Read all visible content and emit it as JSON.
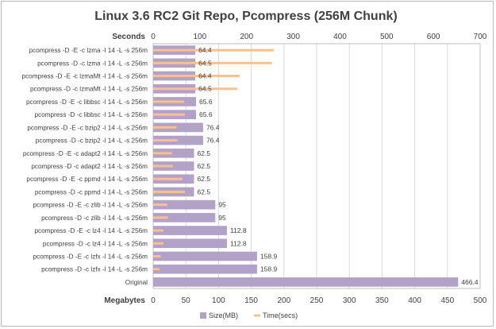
{
  "chart_data": {
    "type": "bar",
    "title": "Linux 3.6 RC2 Git Repo, Pcompress (256M Chunk)",
    "top_axis": {
      "label": "Seconds",
      "min": 0,
      "max": 700,
      "step": 100,
      "ticks": [
        "0",
        "100",
        "200",
        "300",
        "400",
        "500",
        "600",
        "700"
      ]
    },
    "bottom_axis": {
      "label": "Megabytes",
      "min": 0,
      "max": 500,
      "step": 50,
      "ticks": [
        "0",
        "50",
        "100",
        "150",
        "200",
        "250",
        "300",
        "350",
        "400",
        "450",
        "500"
      ]
    },
    "categories": [
      "pcompress -D -E -c lzma -l 14 -L -s 256m",
      "pcompress -D -c lzma -l 14 -L -s 256m",
      "pcompress -D -E -c lzmaMt -l 14 -L -s 256m",
      "pcompress -D -c lzmaMt -l 14 -L -s 256m",
      "pcompress -D -E -c libbsc -l 14 -L -s 256m",
      "pcompress -D -c libbsc -l 14 -L -s 256m",
      "pcompress -D -E -c bzip2 -l 14 -L -s 256m",
      "pcompress -D -c bzip2 -l 14 -L -s 256m",
      "pcompress -D -E -c adapt2 -l 14 -L -s 256m",
      "pcompress -D -c adapt2 -l 14 -L -s 256m",
      "pcompress -D -E -c ppmd -l 14 -L -s 256m",
      "pcompress -D -c ppmd -l 14 -L -s 256m",
      "pcompress -D -E -c zlib -l 14 -L -s 256m",
      "pcompress -D -c zlib -l 14 -L -s 256m",
      "pcompress -D -E -c lz4 -l 14 -L -s 256m",
      "pcompress -D -c lz4 -l 14 -L -s 256m",
      "pcompress -D -E -c lzfx -l 14 -L -s 256m",
      "pcompress -D -c lzfx -l 14 -L -s 256m",
      "Original"
    ],
    "series": [
      {
        "name": "Size(MB)",
        "axis": "bottom",
        "color": "#b3a2c7",
        "values": [
          64.4,
          64.5,
          64.4,
          64.5,
          65.6,
          65.6,
          76.4,
          76.4,
          62.5,
          62.5,
          62.5,
          62.5,
          95,
          95,
          112.8,
          112.8,
          158.9,
          158.9,
          466.4
        ],
        "labels": [
          "64.4",
          "64.5",
          "64.4",
          "64.5",
          "65.6",
          "65.6",
          "76.4",
          "76.4",
          "62.5",
          "62.5",
          "62.5",
          "62.5",
          "95",
          "95",
          "112.8",
          "112.8",
          "158.9",
          "158.9",
          "466.4"
        ]
      },
      {
        "name": "Time(secs)",
        "axis": "top",
        "color": "#fac090",
        "values": [
          258,
          254,
          185,
          180,
          66,
          68,
          50,
          52,
          40,
          42,
          63,
          68,
          30,
          31,
          22,
          22,
          16,
          14,
          null
        ]
      }
    ],
    "legend": {
      "position": "bottom",
      "entries": [
        "Size(MB)",
        "Time(secs)"
      ]
    },
    "grid": true
  }
}
